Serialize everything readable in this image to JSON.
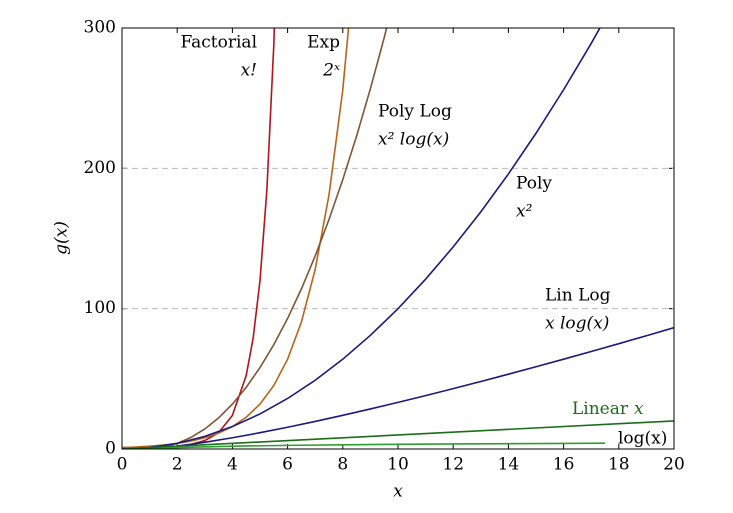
{
  "chart_data": {
    "type": "line",
    "x_label": "x",
    "y_label": "g(x)",
    "xlim": [
      0,
      20
    ],
    "xticks": [
      0,
      2,
      4,
      6,
      8,
      10,
      12,
      14,
      16,
      18,
      20
    ],
    "ylim": [
      0,
      300
    ],
    "yticks": [
      0,
      100,
      200,
      300
    ],
    "grid": true,
    "series": [
      {
        "name": "Factorial",
        "label": "x!",
        "color": "#b5121b",
        "x": [
          0,
          0.5,
          1,
          1.5,
          2,
          2.5,
          3,
          3.5,
          4,
          4.5,
          4.75,
          5,
          5.25,
          5.5,
          5.75
        ],
        "values": [
          1,
          0.886,
          1,
          1.329,
          2,
          3.323,
          6,
          11.63,
          24,
          52.34,
          78.8,
          120,
          184.9,
          287.89,
          453.1
        ]
      },
      {
        "name": "Exp",
        "label": "2ˣ",
        "color": "#b8651b",
        "x": [
          0,
          0.5,
          1,
          1.5,
          2,
          2.5,
          3,
          3.5,
          4,
          4.5,
          5,
          5.5,
          6,
          6.5,
          7,
          7.5,
          8,
          8.5
        ],
        "values": [
          1,
          1.41,
          2,
          2.83,
          4,
          5.66,
          8,
          11.31,
          16,
          22.63,
          32,
          45.25,
          64,
          90.51,
          128,
          181.02,
          256,
          362.04
        ]
      },
      {
        "name": "Poly Log",
        "label": "x² log(x)",
        "color": "#7f5533",
        "x": [
          1,
          1.5,
          2,
          2.5,
          3,
          3.5,
          4,
          4.5,
          5,
          5.5,
          6,
          6.5,
          7,
          7.5,
          8,
          8.5,
          9,
          9.5,
          10
        ],
        "values": [
          0,
          1.32,
          4,
          8.26,
          14.26,
          22.14,
          32,
          43.94,
          58.05,
          74.39,
          93.06,
          114.09,
          137.55,
          163.52,
          192,
          223.04,
          256.76,
          293.13,
          332.19
        ]
      },
      {
        "name": "Poly",
        "label": "x²",
        "color": "#1a1a80",
        "x": [
          0,
          1,
          2,
          3,
          4,
          5,
          6,
          7,
          8,
          9,
          10,
          11,
          12,
          13,
          14,
          15,
          16,
          17,
          18
        ],
        "values": [
          0,
          1,
          4,
          9,
          16,
          25,
          36,
          49,
          64,
          81,
          100,
          121,
          144,
          169,
          196,
          225,
          256,
          289,
          324
        ]
      },
      {
        "name": "Lin Log",
        "label": "x log(x)",
        "color": "#1a1a80",
        "x": [
          1,
          2,
          3,
          4,
          5,
          6,
          7,
          8,
          9,
          10,
          11,
          12,
          13,
          14,
          15,
          16,
          17,
          18,
          19,
          20
        ],
        "values": [
          0,
          2,
          4.75,
          8,
          11.61,
          15.51,
          19.65,
          24,
          28.53,
          33.22,
          38.05,
          43.02,
          48.11,
          53.3,
          58.6,
          64,
          69.49,
          75.06,
          80.71,
          86.44
        ]
      },
      {
        "name": "Linear",
        "label": "x",
        "color": "#1a6e1a",
        "x": [
          0,
          20
        ],
        "values": [
          0,
          20
        ]
      },
      {
        "name": "log(x)",
        "color": "#2e9e2e",
        "x": [
          1,
          2,
          4,
          6,
          8,
          10,
          12,
          14,
          16,
          17.5
        ],
        "values": [
          0,
          1,
          2,
          2.58,
          3,
          3.32,
          3.58,
          3.81,
          4,
          4.13
        ]
      }
    ]
  }
}
